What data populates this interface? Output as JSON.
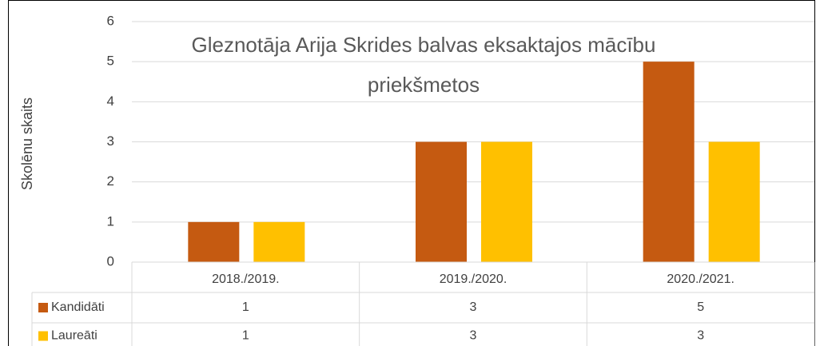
{
  "chart_data": {
    "type": "bar",
    "title": "Gleznotāja Arija Skrides balvas eksaktajos mācību priekšmetos",
    "ylabel": "Skolēnu skaits",
    "categories": [
      "2018./2019.",
      "2019./2020.",
      "2020./2021."
    ],
    "series": [
      {
        "name": "Kandidāti",
        "color": "#c55a11",
        "values": [
          1,
          3,
          5
        ]
      },
      {
        "name": "Laureāti",
        "color": "#ffc000",
        "values": [
          1,
          3,
          3
        ]
      }
    ],
    "ylim": [
      0,
      6
    ],
    "yticks": [
      0,
      1,
      2,
      3,
      4,
      5,
      6
    ],
    "grid": true,
    "data_table": true
  }
}
